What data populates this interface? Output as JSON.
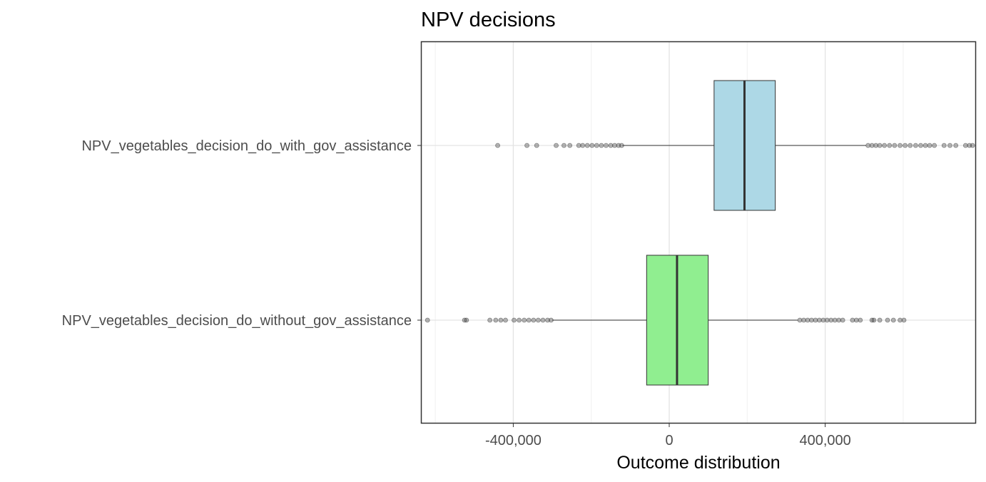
{
  "chart_data": {
    "type": "boxplot",
    "title": "NPV decisions",
    "xlabel": "Outcome distribution",
    "ylabel": "",
    "xlim": [
      -635000,
      785000
    ],
    "x_ticks": [
      -400000,
      0,
      400000
    ],
    "x_tick_labels": [
      "-400,000",
      "0",
      "400,000"
    ],
    "minor_gridlines": [
      -600000,
      -200000,
      200000,
      600000
    ],
    "grid": true,
    "legend": "none",
    "series": [
      {
        "name": "NPV_vegetables_decision_do_with_gov_assistance",
        "fill": "#add8e6",
        "q1": 115000,
        "median": 193000,
        "q3": 272000,
        "whisker_low": -120000,
        "whisker_high": 505000,
        "outliers": [
          -440000,
          -365000,
          -340000,
          -290000,
          -270000,
          -255000,
          -232000,
          -222000,
          -210000,
          -198000,
          -186000,
          -174000,
          -162000,
          -150000,
          -140000,
          -130000,
          -122000,
          510000,
          520000,
          530000,
          540000,
          552000,
          565000,
          578000,
          592000,
          605000,
          618000,
          632000,
          645000,
          657000,
          668000,
          680000,
          705000,
          720000,
          735000,
          760000,
          770000,
          778000
        ]
      },
      {
        "name": "NPV_vegetables_decision_do_without_gov_assistance",
        "fill": "#90ee90",
        "q1": -58000,
        "median": 20000,
        "q3": 100000,
        "whisker_low": -300000,
        "whisker_high": 330000,
        "outliers": [
          -620000,
          -525000,
          -520000,
          -460000,
          -445000,
          -432000,
          -420000,
          -398000,
          -385000,
          -372000,
          -360000,
          -348000,
          -336000,
          -324000,
          -312000,
          -303000,
          335000,
          345000,
          355000,
          365000,
          375000,
          385000,
          395000,
          405000,
          415000,
          425000,
          435000,
          445000,
          470000,
          480000,
          490000,
          520000,
          525000,
          540000,
          560000,
          575000,
          592000,
          602000
        ]
      }
    ]
  }
}
